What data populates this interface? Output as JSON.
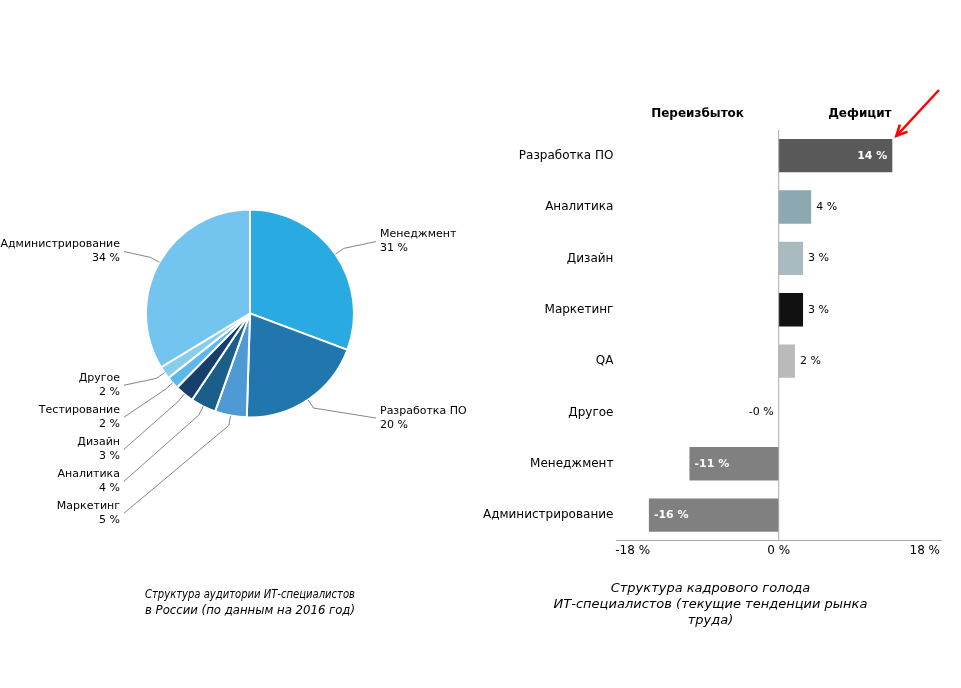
{
  "chart_data": [
    {
      "type": "pie",
      "title": "Структура аудитории ИТ-специалистов\nв России (по данным на 2016 год)",
      "categories": [
        "Менеджмент",
        "Разработка ПО",
        "Маркетинг",
        "Аналитика",
        "Дизайн",
        "Тестирование",
        "Другое",
        "Администрирование"
      ],
      "values": [
        31,
        20,
        5,
        4,
        3,
        2,
        2,
        34
      ],
      "value_labels": [
        "31 %",
        "20 %",
        "5 %",
        "4 %",
        "3 %",
        "2 %",
        "2 %",
        "34 %"
      ],
      "colors": [
        "#29ABE2",
        "#2176AE",
        "#4D9AD4",
        "#1A5E8A",
        "#163F6B",
        "#5BB8E8",
        "#87CEEB",
        "#74C4F0"
      ],
      "data_labels": true
    },
    {
      "type": "bar",
      "orientation": "horizontal",
      "title": "Структура кадрового голода\nИТ-специалистов (текущие тенденции рынка\nтруда)",
      "categories": [
        "Администрирование",
        "Менеджмент",
        "Другое",
        "QA",
        "Маркетинг",
        "Дизайн",
        "Аналитика",
        "Разработка ПО"
      ],
      "values": [
        -16,
        -11,
        0,
        2,
        3,
        3,
        4,
        14
      ],
      "value_labels": [
        "-16 %",
        "-11 %",
        "-0 %",
        "2 %",
        "3 %",
        "3 %",
        "4 %",
        "14 %"
      ],
      "colors": [
        "#808080",
        "#808080",
        "#999999",
        "#BABABA",
        "#111111",
        "#AABBC0",
        "#8CA8B0",
        "#595959"
      ],
      "data_labels": true,
      "xlim": [
        -20,
        20
      ],
      "xticks": [
        {
          "value": -18,
          "label": "-18 %"
        },
        {
          "value": 0,
          "label": "0 %"
        },
        {
          "value": 18,
          "label": "18 %"
        }
      ],
      "grid": false,
      "annotations": [
        "Переизбыток",
        "Дефицит"
      ]
    }
  ]
}
